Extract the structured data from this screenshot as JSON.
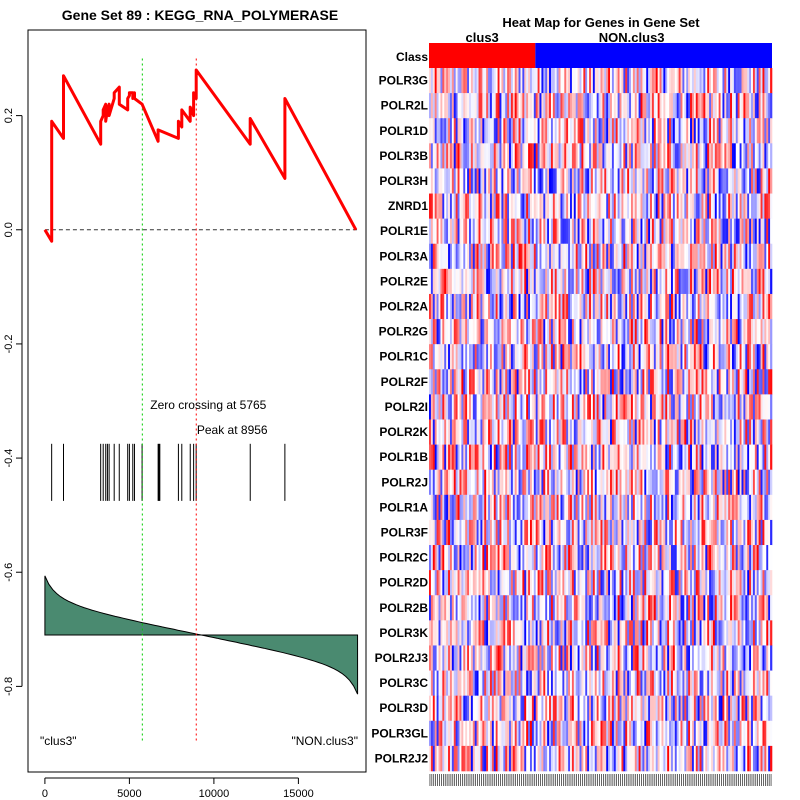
{
  "chart_data": [
    {
      "type": "line",
      "title": "Gene Set  89 : KEGG_RNA_POLYMERASE",
      "xlabel": "",
      "ylabel": "",
      "xlim": [
        -1000,
        19000
      ],
      "ylim": [
        -0.95,
        0.35
      ],
      "x_ticks": [
        0,
        5000,
        10000,
        15000
      ],
      "x_tick_labels": [
        "0",
        "5000",
        "10000",
        "15000"
      ],
      "y_ticks": [
        0.2,
        0.0,
        -0.2,
        -0.4,
        -0.6,
        -0.8
      ],
      "y_tick_labels": [
        "0.2",
        "0.0",
        "-0.2",
        "-0.4",
        "-0.6",
        "-0.8"
      ],
      "n_genes": 18500,
      "running_enrichment_score": {
        "x": [
          0,
          400,
          400,
          1100,
          1100,
          3300,
          3300,
          3450,
          3450,
          3600,
          3600,
          3700,
          3700,
          3800,
          3800,
          4100,
          4100,
          4400,
          4400,
          4900,
          4900,
          5000,
          5000,
          5200,
          5200,
          5300,
          5300,
          5750,
          6700,
          6700,
          7900,
          7900,
          8100,
          8100,
          8600,
          8600,
          8800,
          8800,
          8950,
          8950,
          12150,
          12150,
          14200,
          14200,
          18400
        ],
        "y": [
          0.0,
          -0.02,
          0.19,
          0.16,
          0.27,
          0.15,
          0.19,
          0.2,
          0.21,
          0.22,
          0.19,
          0.21,
          0.21,
          0.22,
          0.2,
          0.23,
          0.24,
          0.25,
          0.22,
          0.21,
          0.23,
          0.235,
          0.24,
          0.24,
          0.23,
          0.24,
          0.23,
          0.22,
          0.155,
          0.175,
          0.16,
          0.19,
          0.18,
          0.21,
          0.19,
          0.215,
          0.2,
          0.24,
          0.23,
          0.28,
          0.15,
          0.195,
          0.09,
          0.23,
          0.0
        ]
      },
      "zero_line": 0.0,
      "zero_crossing": 5765,
      "zero_crossing_label": "Zero crossing at 5765",
      "peak": 8956,
      "peak_label": "Peak at 8956",
      "gene_hits": [
        400,
        1100,
        3300,
        3450,
        3600,
        3700,
        3800,
        4100,
        4400,
        4900,
        5000,
        5200,
        5300,
        5750,
        6700,
        6750,
        6800,
        7900,
        8100,
        8600,
        8800,
        8950,
        12150,
        14200
      ],
      "ranked_metric_range": [
        0.19,
        -0.19
      ],
      "left_label": "\"clus3\"",
      "right_label": "\"NON.clus3\"",
      "colors": {
        "es_line": "#ff0000",
        "zero_crossing": "#00cc00",
        "peak": "#ff0000",
        "metric_fill": "#4a8a70"
      }
    },
    {
      "type": "heatmap",
      "title": "Heat Map for Genes in Gene Set",
      "class_row_label": "Class",
      "class_groups": [
        {
          "name": "clus3",
          "fraction": 0.31,
          "color": "#ff0000"
        },
        {
          "name": "NON.clus3",
          "fraction": 0.69,
          "color": "#0000ff"
        }
      ],
      "genes": [
        "POLR3G",
        "POLR2L",
        "POLR1D",
        "POLR3B",
        "POLR3H",
        "ZNRD1",
        "POLR1E",
        "POLR3A",
        "POLR2E",
        "POLR2A",
        "POLR2G",
        "POLR1C",
        "POLR2F",
        "POLR2I",
        "POLR2K",
        "POLR1B",
        "POLR2J",
        "POLR1A",
        "POLR3F",
        "POLR2C",
        "POLR2D",
        "POLR2B",
        "POLR3K",
        "POLR2J3",
        "POLR3C",
        "POLR3D",
        "POLR3GL",
        "POLR2J2"
      ],
      "n_samples": 180,
      "colors": {
        "high": "#ff0000",
        "mid": "#ffffff",
        "low": "#0000ff"
      }
    }
  ]
}
